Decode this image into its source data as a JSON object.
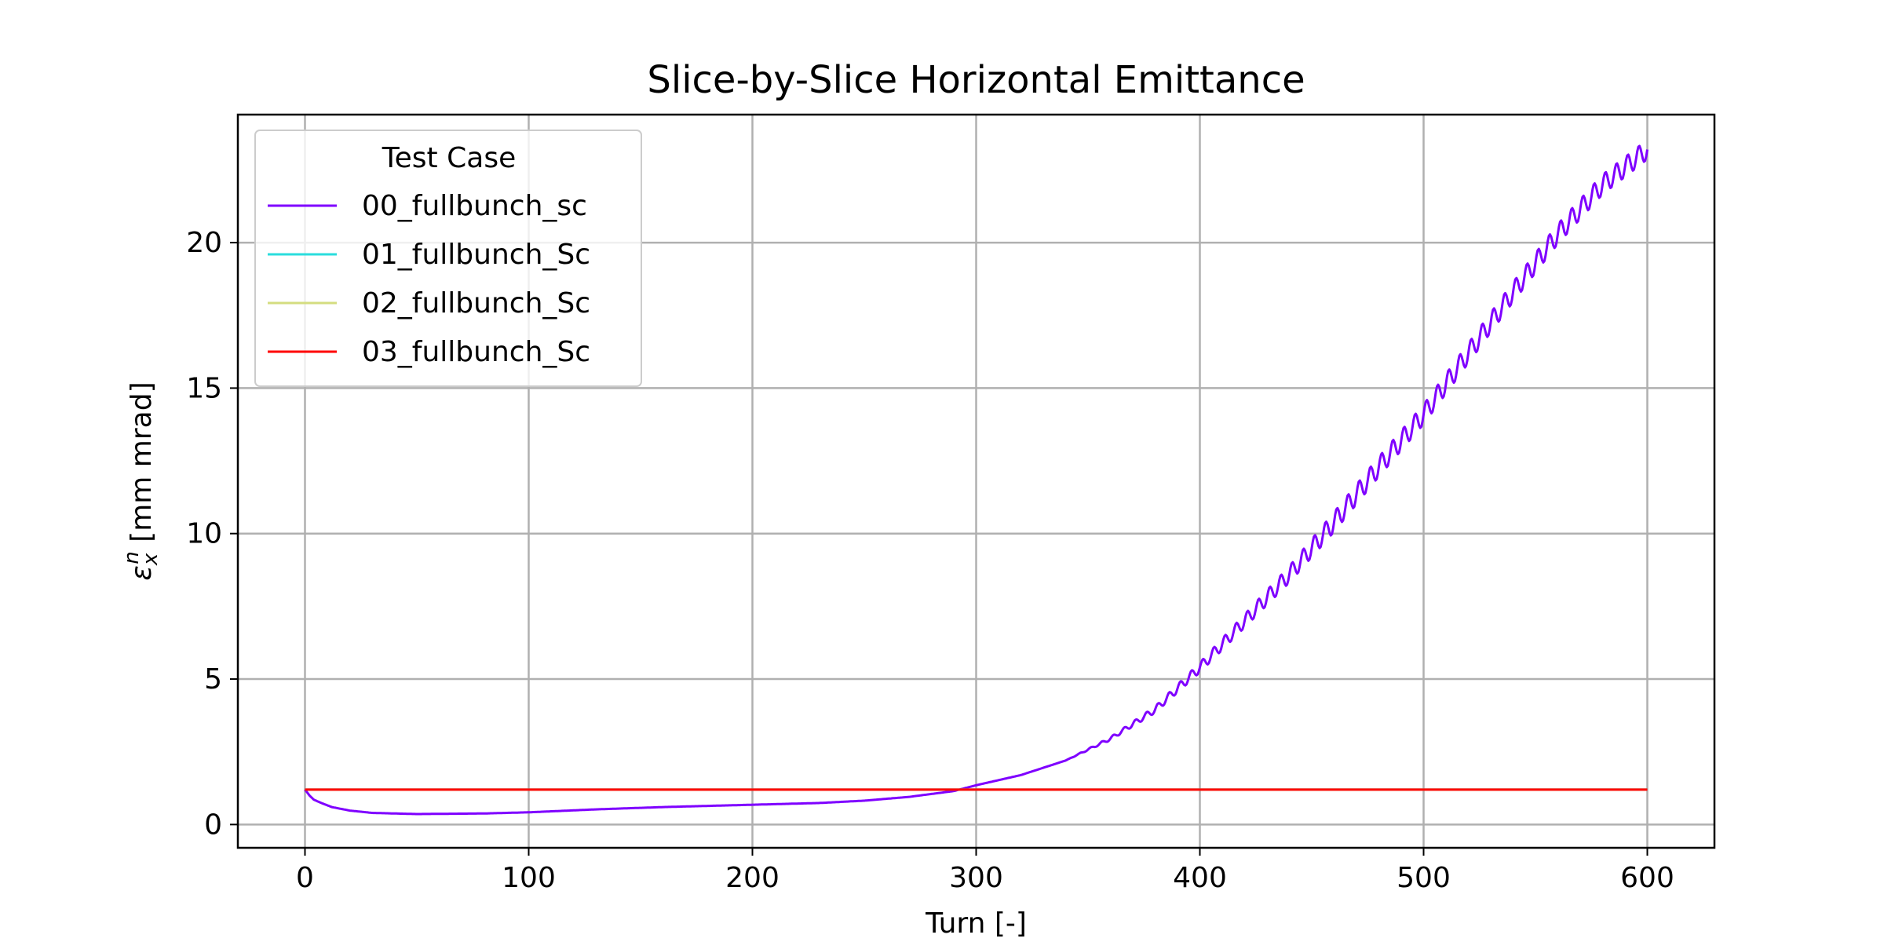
{
  "chart_data": {
    "type": "line",
    "title": "Slice-by-Slice Horizontal Emittance",
    "xlabel": "Turn [-]",
    "ylabel": "ε",
    "ylabel_sub": "x",
    "ylabel_sup": "n",
    "ylabel_unit": " [mm mrad]",
    "xlim": [
      -30,
      630
    ],
    "ylim": [
      -0.8,
      24.4
    ],
    "xticks": [
      0,
      100,
      200,
      300,
      400,
      500,
      600
    ],
    "yticks": [
      0,
      5,
      10,
      15,
      20
    ],
    "grid": true,
    "legend": {
      "title": "Test Case",
      "placement": "upper-left"
    },
    "series": [
      {
        "name": "00_fullbunch_sc",
        "color": "#7f00ff",
        "smooth_points": [
          [
            0,
            1.2
          ],
          [
            2,
            1.0
          ],
          [
            4,
            0.85
          ],
          [
            8,
            0.72
          ],
          [
            12,
            0.6
          ],
          [
            20,
            0.48
          ],
          [
            30,
            0.4
          ],
          [
            50,
            0.36
          ],
          [
            80,
            0.38
          ],
          [
            100,
            0.42
          ],
          [
            130,
            0.52
          ],
          [
            160,
            0.6
          ],
          [
            200,
            0.68
          ],
          [
            230,
            0.74
          ],
          [
            250,
            0.82
          ],
          [
            270,
            0.95
          ],
          [
            290,
            1.15
          ],
          [
            300,
            1.35
          ],
          [
            320,
            1.7
          ],
          [
            340,
            2.2
          ],
          [
            360,
            2.95
          ],
          [
            380,
            3.95
          ],
          [
            400,
            5.4
          ],
          [
            420,
            7.0
          ],
          [
            440,
            8.6
          ],
          [
            460,
            10.4
          ],
          [
            480,
            12.3
          ],
          [
            500,
            14.1
          ],
          [
            520,
            16.2
          ],
          [
            540,
            18.3
          ],
          [
            560,
            20.3
          ],
          [
            580,
            22.0
          ],
          [
            600,
            23.2
          ]
        ],
        "oscillation": {
          "period_turns": 5,
          "start_turn": 340,
          "max_amplitude": 0.35
        }
      },
      {
        "name": "01_fullbunch_Sc",
        "color": "#2adddd",
        "x": [
          0,
          600
        ],
        "y": [
          1.2,
          1.2
        ]
      },
      {
        "name": "02_fullbunch_Sc",
        "color": "#d4dd80",
        "x": [
          0,
          600
        ],
        "y": [
          1.2,
          1.2
        ]
      },
      {
        "name": "03_fullbunch_Sc",
        "color": "#ff0000",
        "x": [
          0,
          600
        ],
        "y": [
          1.2,
          1.2
        ]
      }
    ]
  }
}
